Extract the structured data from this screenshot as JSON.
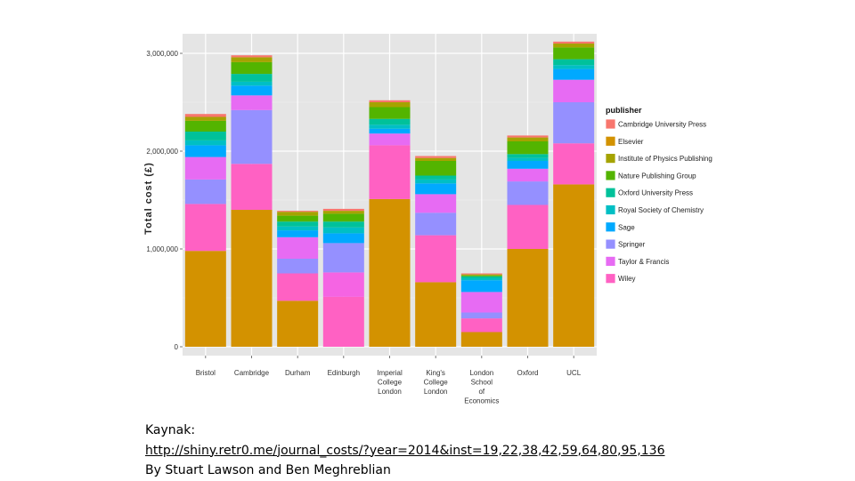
{
  "chart_data": {
    "type": "bar",
    "stacked": true,
    "title": "",
    "xlabel": "",
    "ylabel": "Total cost (£)",
    "ylim": [
      0,
      3200000
    ],
    "yticks": [
      0,
      1000000,
      2000000,
      3000000
    ],
    "ytick_labels": [
      "0",
      "1,000,000",
      "2,000,000",
      "3,000,000"
    ],
    "grid": true,
    "legend_position": "right",
    "legend_title": "publisher",
    "categories": [
      [
        "Bristol"
      ],
      [
        "Cambridge"
      ],
      [
        "Durham"
      ],
      [
        "Edinburgh"
      ],
      [
        "Imperial",
        "College",
        "London"
      ],
      [
        "King's",
        "College",
        "London"
      ],
      [
        "London",
        "School",
        "of",
        "Economics"
      ],
      [
        "Oxford"
      ],
      [
        "UCL"
      ]
    ],
    "series": [
      {
        "name": "Elsevier",
        "color": "#D39200",
        "values": [
          980000,
          1400000,
          470000,
          0,
          1510000,
          660000,
          150000,
          1000000,
          1660000
        ]
      },
      {
        "name": "Wiley",
        "color": "#FF61C3",
        "values": [
          480000,
          470000,
          280000,
          510000,
          550000,
          480000,
          140000,
          450000,
          420000
        ]
      },
      {
        "name": "Taylor & Francis",
        "color": "#F564E3",
        "values": [
          0,
          0,
          0,
          250000,
          0,
          0,
          0,
          0,
          0
        ]
      },
      {
        "name": "Springer",
        "color": "#9590FF",
        "values": [
          250000,
          550000,
          150000,
          300000,
          0,
          230000,
          60000,
          240000,
          420000
        ]
      },
      {
        "name": "Taylor & Francis",
        "color": "#E76BF3",
        "values": [
          230000,
          150000,
          220000,
          0,
          120000,
          190000,
          210000,
          130000,
          230000
        ]
      },
      {
        "name": "Sage",
        "color": "#00A9FF",
        "values": [
          120000,
          100000,
          70000,
          100000,
          50000,
          110000,
          120000,
          80000,
          110000
        ]
      },
      {
        "name": "Royal Society of Chemistry",
        "color": "#00BFC4",
        "values": [
          50000,
          40000,
          40000,
          60000,
          40000,
          40000,
          20000,
          30000,
          40000
        ]
      },
      {
        "name": "Oxford University Press",
        "color": "#00C19A",
        "values": [
          90000,
          80000,
          50000,
          60000,
          60000,
          40000,
          20000,
          40000,
          60000
        ]
      },
      {
        "name": "Nature Publishing Group",
        "color": "#53B400",
        "values": [
          110000,
          120000,
          60000,
          80000,
          120000,
          150000,
          10000,
          130000,
          120000
        ]
      },
      {
        "name": "Institute of Physics Publishing",
        "color": "#A5A300",
        "values": [
          40000,
          50000,
          40000,
          30000,
          50000,
          30000,
          10000,
          40000,
          40000
        ]
      },
      {
        "name": "Cambridge University Press",
        "color": "#F8766D",
        "values": [
          30000,
          20000,
          10000,
          20000,
          20000,
          20000,
          10000,
          20000,
          20000
        ]
      }
    ],
    "legend_items": [
      {
        "label": "Cambridge University Press",
        "color": "#F8766D"
      },
      {
        "label": "Elsevier",
        "color": "#D39200"
      },
      {
        "label": "Institute of Physics Publishing",
        "color": "#A5A300"
      },
      {
        "label": "Nature Publishing Group",
        "color": "#53B400"
      },
      {
        "label": "Oxford University Press",
        "color": "#00C19A"
      },
      {
        "label": "Royal Society of Chemistry",
        "color": "#00BFC4"
      },
      {
        "label": "Sage",
        "color": "#00A9FF"
      },
      {
        "label": "Springer",
        "color": "#9590FF"
      },
      {
        "label": "Taylor & Francis",
        "color": "#E76BF3"
      },
      {
        "label": "Wiley",
        "color": "#FF61C3"
      }
    ]
  },
  "caption": {
    "line1": "Kaynak:",
    "link": "http://shiny.retr0.me/journal_costs/?year=2014&inst=19,22,38,42,59,64,80,95,136",
    "line3": "By  Stuart Lawson and Ben Meghreblian"
  }
}
